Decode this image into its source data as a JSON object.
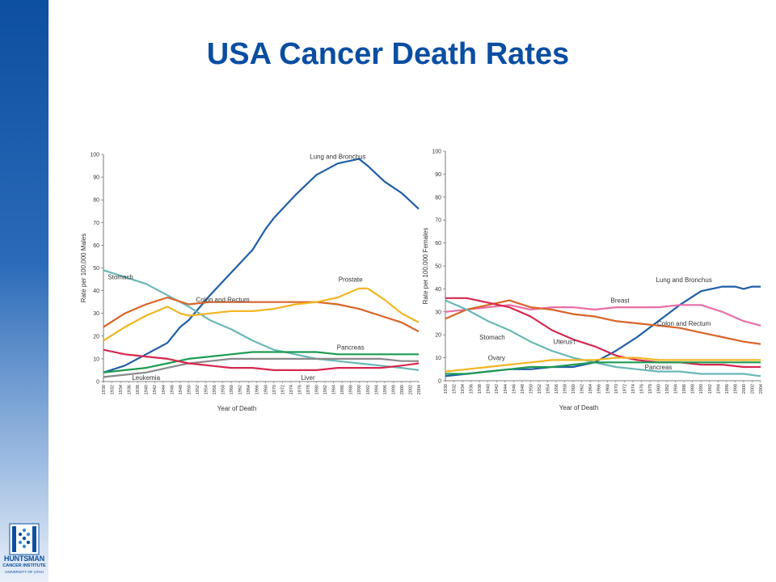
{
  "slide": {
    "title": "USA Cancer Death Rates"
  },
  "logo": {
    "name": "HUNTSMAN",
    "line1": "CANCER INSTITUTE",
    "line2": "UNIVERSITY OF UTAH"
  },
  "chart_data": [
    {
      "type": "line",
      "xlabel": "Year of Death",
      "ylabel": "Rate per 100,000 Males",
      "ylim": [
        0,
        100
      ],
      "yticks": [
        0,
        10,
        20,
        30,
        40,
        50,
        60,
        70,
        80,
        90,
        100
      ],
      "xlim": [
        1930,
        2004
      ],
      "xticks": [
        1930,
        1932,
        1934,
        1936,
        1938,
        1940,
        1942,
        1944,
        1946,
        1948,
        1950,
        1952,
        1954,
        1956,
        1958,
        1960,
        1962,
        1964,
        1966,
        1968,
        1970,
        1972,
        1974,
        1976,
        1978,
        1980,
        1982,
        1984,
        1986,
        1988,
        1990,
        1992,
        1994,
        1996,
        1998,
        2000,
        2002,
        2004
      ],
      "series": [
        {
          "name": "Lung and Bronchus",
          "color": "#1f5fa6",
          "label_at": [
            1985,
            98
          ],
          "points": [
            [
              1930,
              4
            ],
            [
              1935,
              7
            ],
            [
              1940,
              12
            ],
            [
              1945,
              17
            ],
            [
              1948,
              24
            ],
            [
              1950,
              27
            ],
            [
              1955,
              38
            ],
            [
              1960,
              48
            ],
            [
              1965,
              58
            ],
            [
              1968,
              67
            ],
            [
              1970,
              72
            ],
            [
              1975,
              82
            ],
            [
              1980,
              91
            ],
            [
              1985,
              96
            ],
            [
              1990,
              98
            ],
            [
              1992,
              95
            ],
            [
              1996,
              88
            ],
            [
              2000,
              83
            ],
            [
              2004,
              76
            ]
          ]
        },
        {
          "name": "Stomach",
          "color": "#6ab7b8",
          "label_at": [
            1934,
            45
          ],
          "points": [
            [
              1930,
              49
            ],
            [
              1935,
              46
            ],
            [
              1940,
              43
            ],
            [
              1945,
              38
            ],
            [
              1950,
              33
            ],
            [
              1955,
              27
            ],
            [
              1960,
              23
            ],
            [
              1965,
              18
            ],
            [
              1970,
              14
            ],
            [
              1975,
              12
            ],
            [
              1980,
              10
            ],
            [
              1985,
              9
            ],
            [
              1990,
              8
            ],
            [
              1995,
              7
            ],
            [
              2000,
              6
            ],
            [
              2004,
              5
            ]
          ]
        },
        {
          "name": "Colon and Rectum",
          "color": "#d9642a",
          "label_at": [
            1958,
            35
          ],
          "points": [
            [
              1930,
              24
            ],
            [
              1935,
              30
            ],
            [
              1940,
              34
            ],
            [
              1945,
              37
            ],
            [
              1950,
              34
            ],
            [
              1955,
              35
            ],
            [
              1960,
              35
            ],
            [
              1965,
              35
            ],
            [
              1970,
              35
            ],
            [
              1975,
              35
            ],
            [
              1980,
              35
            ],
            [
              1985,
              34
            ],
            [
              1990,
              32
            ],
            [
              1995,
              29
            ],
            [
              2000,
              26
            ],
            [
              2004,
              22
            ]
          ]
        },
        {
          "name": "Prostate",
          "color": "#f2b523",
          "label_at": [
            1988,
            44
          ],
          "points": [
            [
              1930,
              18
            ],
            [
              1935,
              24
            ],
            [
              1940,
              29
            ],
            [
              1945,
              33
            ],
            [
              1948,
              30
            ],
            [
              1950,
              29
            ],
            [
              1955,
              30
            ],
            [
              1960,
              31
            ],
            [
              1965,
              31
            ],
            [
              1970,
              32
            ],
            [
              1975,
              34
            ],
            [
              1980,
              35
            ],
            [
              1985,
              37
            ],
            [
              1990,
              41
            ],
            [
              1992,
              41
            ],
            [
              1996,
              36
            ],
            [
              2000,
              30
            ],
            [
              2004,
              26
            ]
          ]
        },
        {
          "name": "Pancreas",
          "color": "#1f9b52",
          "label_at": [
            1988,
            14
          ],
          "points": [
            [
              1930,
              4
            ],
            [
              1935,
              5
            ],
            [
              1940,
              6
            ],
            [
              1945,
              8
            ],
            [
              1950,
              10
            ],
            [
              1955,
              11
            ],
            [
              1960,
              12
            ],
            [
              1965,
              13
            ],
            [
              1970,
              13
            ],
            [
              1975,
              13
            ],
            [
              1980,
              13
            ],
            [
              1985,
              12
            ],
            [
              1990,
              12
            ],
            [
              1995,
              12
            ],
            [
              2000,
              12
            ],
            [
              2004,
              12
            ]
          ]
        },
        {
          "name": "Leukemia",
          "color": "#8a8a8a",
          "label_at": [
            1940,
            -1
          ],
          "points": [
            [
              1930,
              2
            ],
            [
              1935,
              3
            ],
            [
              1940,
              4
            ],
            [
              1945,
              6
            ],
            [
              1950,
              8
            ],
            [
              1955,
              9
            ],
            [
              1960,
              10
            ],
            [
              1965,
              10
            ],
            [
              1970,
              10
            ],
            [
              1975,
              10
            ],
            [
              1980,
              10
            ],
            [
              1985,
              10
            ],
            [
              1990,
              10
            ],
            [
              1995,
              10
            ],
            [
              2000,
              9
            ],
            [
              2004,
              9
            ]
          ]
        },
        {
          "name": "Liver",
          "color": "#d6284f",
          "label_at": [
            1978,
            -1
          ],
          "points": [
            [
              1930,
              14
            ],
            [
              1935,
              12
            ],
            [
              1940,
              11
            ],
            [
              1945,
              10
            ],
            [
              1950,
              8
            ],
            [
              1955,
              7
            ],
            [
              1960,
              6
            ],
            [
              1965,
              6
            ],
            [
              1970,
              5
            ],
            [
              1975,
              5
            ],
            [
              1980,
              5
            ],
            [
              1985,
              6
            ],
            [
              1990,
              6
            ],
            [
              1995,
              6
            ],
            [
              2000,
              7
            ],
            [
              2004,
              8
            ]
          ]
        }
      ]
    },
    {
      "type": "line",
      "xlabel": "Year of Death",
      "ylabel": "Rate per 100,000 Females",
      "ylim": [
        0,
        100
      ],
      "yticks": [
        0,
        10,
        20,
        30,
        40,
        50,
        60,
        70,
        80,
        90,
        100
      ],
      "xlim": [
        1930,
        2004
      ],
      "xticks": [
        1930,
        1932,
        1934,
        1936,
        1938,
        1940,
        1942,
        1944,
        1946,
        1948,
        1950,
        1952,
        1954,
        1956,
        1958,
        1960,
        1962,
        1964,
        1966,
        1968,
        1970,
        1972,
        1974,
        1976,
        1978,
        1980,
        1982,
        1984,
        1986,
        1988,
        1990,
        1992,
        1994,
        1996,
        1998,
        2000,
        2002,
        2004
      ],
      "series": [
        {
          "name": "Lung and Bronchus",
          "color": "#1f5fa6",
          "label_at": [
            1986,
            43
          ],
          "points": [
            [
              1930,
              2
            ],
            [
              1935,
              3
            ],
            [
              1940,
              4
            ],
            [
              1945,
              5
            ],
            [
              1950,
              5
            ],
            [
              1955,
              6
            ],
            [
              1960,
              6
            ],
            [
              1965,
              8
            ],
            [
              1970,
              13
            ],
            [
              1975,
              19
            ],
            [
              1980,
              26
            ],
            [
              1985,
              33
            ],
            [
              1990,
              39
            ],
            [
              1995,
              41
            ],
            [
              1998,
              41
            ],
            [
              2000,
              40
            ],
            [
              2002,
              41
            ],
            [
              2004,
              41
            ]
          ]
        },
        {
          "name": "Breast",
          "color": "#e86fa6",
          "label_at": [
            1971,
            34
          ],
          "points": [
            [
              1930,
              30
            ],
            [
              1935,
              31
            ],
            [
              1940,
              32
            ],
            [
              1945,
              33
            ],
            [
              1950,
              31
            ],
            [
              1955,
              32
            ],
            [
              1960,
              32
            ],
            [
              1965,
              31
            ],
            [
              1970,
              32
            ],
            [
              1975,
              32
            ],
            [
              1980,
              32
            ],
            [
              1985,
              33
            ],
            [
              1990,
              33
            ],
            [
              1995,
              30
            ],
            [
              2000,
              26
            ],
            [
              2004,
              24
            ]
          ]
        },
        {
          "name": "Colon and Rectum",
          "color": "#d9642a",
          "label_at": [
            1986,
            24
          ],
          "points": [
            [
              1930,
              27
            ],
            [
              1935,
              31
            ],
            [
              1940,
              33
            ],
            [
              1945,
              35
            ],
            [
              1950,
              32
            ],
            [
              1955,
              31
            ],
            [
              1960,
              29
            ],
            [
              1965,
              28
            ],
            [
              1970,
              26
            ],
            [
              1975,
              25
            ],
            [
              1980,
              24
            ],
            [
              1985,
              23
            ],
            [
              1990,
              21
            ],
            [
              1995,
              19
            ],
            [
              2000,
              17
            ],
            [
              2004,
              16
            ]
          ]
        },
        {
          "name": "Stomach",
          "color": "#6ab7b8",
          "label_at": [
            1941,
            18
          ],
          "points": [
            [
              1930,
              35
            ],
            [
              1935,
              31
            ],
            [
              1940,
              26
            ],
            [
              1945,
              22
            ],
            [
              1950,
              17
            ],
            [
              1955,
              13
            ],
            [
              1960,
              10
            ],
            [
              1965,
              8
            ],
            [
              1970,
              6
            ],
            [
              1975,
              5
            ],
            [
              1980,
              4
            ],
            [
              1985,
              4
            ],
            [
              1990,
              3
            ],
            [
              1995,
              3
            ],
            [
              2000,
              3
            ],
            [
              2004,
              2
            ]
          ]
        },
        {
          "name": "Uterus†",
          "color": "#d6284f",
          "label_at": [
            1958,
            16
          ],
          "points": [
            [
              1930,
              36
            ],
            [
              1935,
              36
            ],
            [
              1940,
              34
            ],
            [
              1945,
              32
            ],
            [
              1950,
              28
            ],
            [
              1955,
              22
            ],
            [
              1960,
              18
            ],
            [
              1965,
              15
            ],
            [
              1970,
              11
            ],
            [
              1975,
              9
            ],
            [
              1980,
              8
            ],
            [
              1985,
              8
            ],
            [
              1990,
              7
            ],
            [
              1995,
              7
            ],
            [
              2000,
              6
            ],
            [
              2004,
              6
            ]
          ]
        },
        {
          "name": "Ovary",
          "color": "#f2b523",
          "label_at": [
            1942,
            9
          ],
          "points": [
            [
              1930,
              4
            ],
            [
              1935,
              5
            ],
            [
              1940,
              6
            ],
            [
              1945,
              7
            ],
            [
              1950,
              8
            ],
            [
              1955,
              9
            ],
            [
              1960,
              9
            ],
            [
              1965,
              9
            ],
            [
              1970,
              10
            ],
            [
              1975,
              10
            ],
            [
              1980,
              9
            ],
            [
              1985,
              9
            ],
            [
              1990,
              9
            ],
            [
              1995,
              9
            ],
            [
              2000,
              9
            ],
            [
              2004,
              9
            ]
          ]
        },
        {
          "name": "Pancreas",
          "color": "#1f9b52",
          "label_at": [
            1980,
            5
          ],
          "points": [
            [
              1930,
              3
            ],
            [
              1935,
              3
            ],
            [
              1940,
              4
            ],
            [
              1945,
              5
            ],
            [
              1950,
              6
            ],
            [
              1955,
              6
            ],
            [
              1960,
              7
            ],
            [
              1965,
              8
            ],
            [
              1970,
              8
            ],
            [
              1975,
              8
            ],
            [
              1980,
              8
            ],
            [
              1985,
              8
            ],
            [
              1990,
              8
            ],
            [
              1995,
              8
            ],
            [
              2000,
              8
            ],
            [
              2004,
              8
            ]
          ]
        }
      ]
    }
  ]
}
